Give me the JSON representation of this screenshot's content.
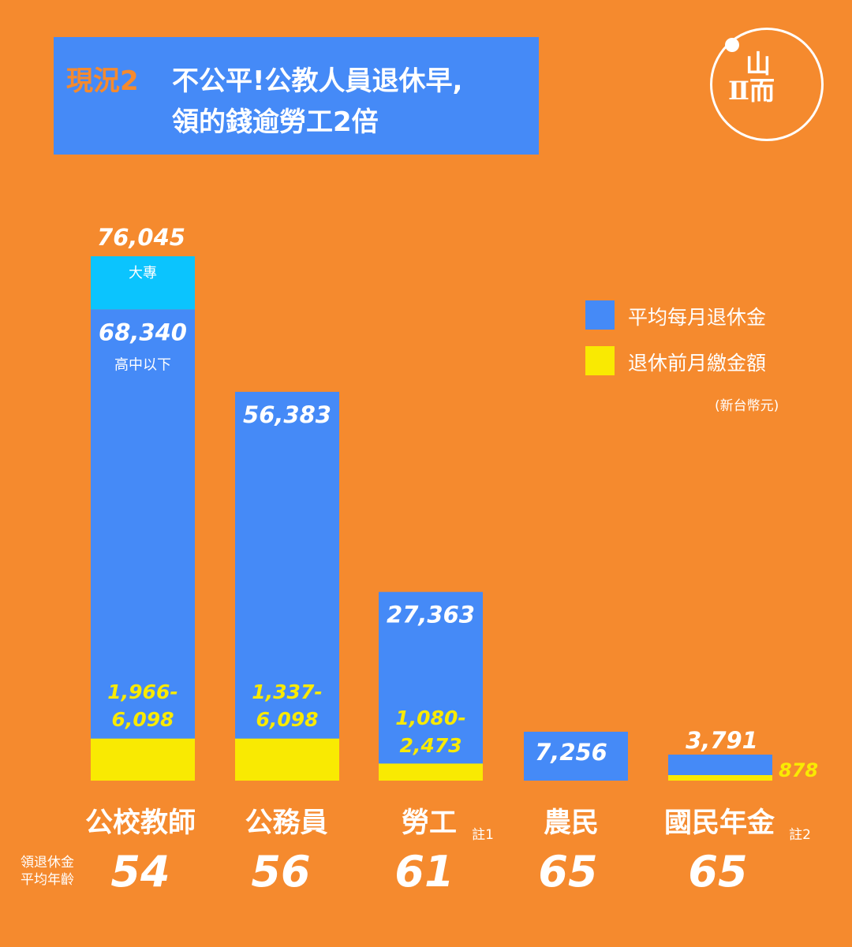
{
  "title": {
    "tag": "現況2",
    "line1": "不公平!公教人員退休早,",
    "line2": "領的錢逾勞工2倍"
  },
  "logo": {
    "line1": "山",
    "line2": "Ⅱ而"
  },
  "legend": {
    "items": [
      {
        "label": "平均每月退休金",
        "color": "#458af7"
      },
      {
        "label": "退休前月繳金額",
        "color": "#f9ea02"
      }
    ],
    "unit": "(新台幣元)"
  },
  "age_label": [
    "領退休金",
    "平均年齡"
  ],
  "colors": {
    "background": "#f58a2e",
    "pension": "#458af7",
    "pension_top": "#0bc4fe",
    "contribution": "#f9ea02",
    "range_text": "#f9ea02"
  },
  "chart_data": {
    "type": "bar",
    "categories": [
      "公校教師",
      "公務員",
      "勞工",
      "農民",
      "國民年金"
    ],
    "notes": [
      "",
      "",
      "註1",
      "",
      "註2"
    ],
    "ages": [
      54,
      56,
      61,
      65,
      65
    ],
    "series": [
      {
        "name": "平均每月退休金",
        "values": [
          68340,
          56383,
          27363,
          7256,
          3791
        ],
        "labels": [
          "68,340",
          "56,383",
          "27,363",
          "7,256",
          "3,791"
        ],
        "sublabels": [
          "高中以下",
          "",
          "",
          "",
          ""
        ]
      },
      {
        "name": "退休前月繳金額",
        "values": [
          6098,
          6098,
          2473,
          null,
          878
        ],
        "labels": [
          [
            "1,966-",
            "6,098"
          ],
          [
            "1,337-",
            "6,098"
          ],
          [
            "1,080-",
            "2,473"
          ],
          [],
          [
            "878"
          ]
        ]
      }
    ],
    "extra": {
      "category": "公校教師",
      "value": 76045,
      "label": "76,045",
      "sublabel": "大專"
    },
    "ylim": [
      0,
      76045
    ]
  }
}
